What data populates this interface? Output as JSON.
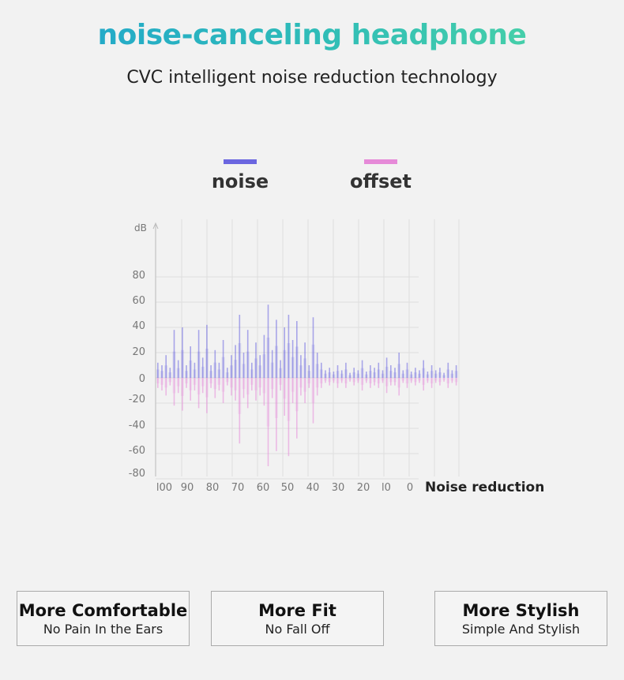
{
  "header": {
    "title": "noise-canceling headphone",
    "subtitle": "CVC intelligent noise reduction technology"
  },
  "legend": [
    {
      "label": "noise",
      "color": "#6b66e0"
    },
    {
      "label": "offset",
      "color": "#e68ad8"
    }
  ],
  "chart_data": {
    "type": "bar",
    "ylabel": "dB",
    "xlabel": "Noise reduction",
    "y_ticks": [
      "80",
      "60",
      "40",
      "20",
      "0",
      "-20",
      "-40",
      "-60",
      "-80"
    ],
    "x_ticks": [
      "l00",
      "90",
      "80",
      "70",
      "60",
      "50",
      "40",
      "30",
      "20",
      "l0",
      "0"
    ],
    "ylim": [
      -80,
      80
    ],
    "series": [
      {
        "name": "noise",
        "color": "#6b66e0",
        "values": [
          12,
          10,
          18,
          8,
          38,
          14,
          40,
          10,
          25,
          12,
          38,
          16,
          42,
          10,
          22,
          12,
          30,
          8,
          18,
          26,
          50,
          20,
          38,
          12,
          28,
          18,
          34,
          58,
          22,
          46,
          14,
          40,
          50,
          30,
          45,
          18,
          28,
          10,
          48,
          20,
          12,
          6,
          8,
          5,
          10,
          6,
          12,
          4,
          8,
          6,
          14,
          5,
          10,
          8,
          12,
          6,
          16,
          10,
          8,
          20,
          6,
          12,
          5,
          8,
          6,
          14,
          5,
          10,
          6,
          8,
          4,
          12,
          6,
          10
        ]
      },
      {
        "name": "offset",
        "color": "#e68ad8",
        "values": [
          -8,
          -10,
          -14,
          -6,
          -22,
          -12,
          -26,
          -8,
          -18,
          -10,
          -24,
          -12,
          -28,
          -8,
          -16,
          -10,
          -20,
          -6,
          -14,
          -18,
          -52,
          -16,
          -24,
          -10,
          -18,
          -14,
          -22,
          -70,
          -16,
          -58,
          -10,
          -30,
          -62,
          -20,
          -48,
          -14,
          -20,
          -8,
          -36,
          -14,
          -8,
          -4,
          -6,
          -4,
          -8,
          -4,
          -8,
          -3,
          -6,
          -4,
          -10,
          -4,
          -8,
          -6,
          -8,
          -4,
          -12,
          -6,
          -6,
          -14,
          -4,
          -8,
          -4,
          -6,
          -4,
          -10,
          -4,
          -8,
          -4,
          -6,
          -3,
          -8,
          -4,
          -6
        ]
      }
    ]
  },
  "features": [
    {
      "title": "More Comfortable",
      "sub": "No Pain In the Ears"
    },
    {
      "title": "More Fit",
      "sub": "No Fall Off"
    },
    {
      "title": "More Stylish",
      "sub": "Simple And Stylish"
    }
  ]
}
